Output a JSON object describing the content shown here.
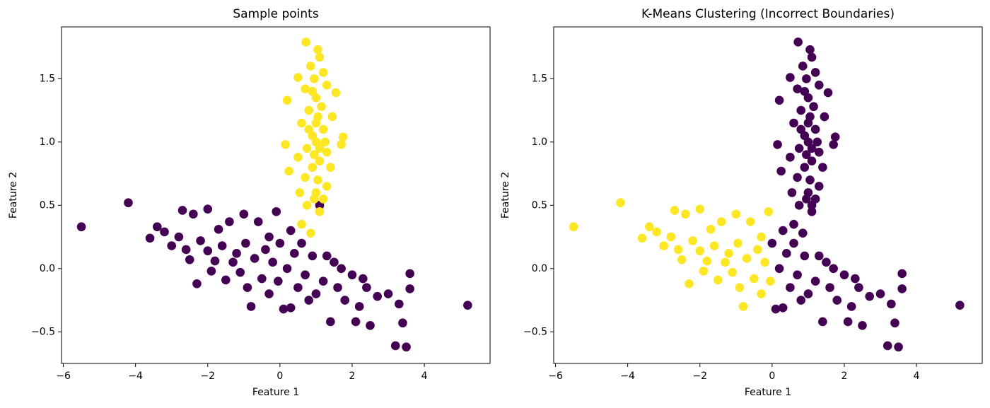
{
  "chart_data": [
    {
      "type": "scatter",
      "title": "Sample points",
      "xlabel": "Feature 1",
      "ylabel": "Feature 2",
      "xlim": [
        -6.05,
        5.82
      ],
      "ylim": [
        -0.75,
        1.91
      ],
      "xticks": [
        {
          "value": -6,
          "label": "−6"
        },
        {
          "value": -4,
          "label": "−4"
        },
        {
          "value": -2,
          "label": "−2"
        },
        0,
        2,
        4
      ],
      "yticks": [
        {
          "value": -0.5,
          "label": "−0.5"
        },
        {
          "value": 0,
          "label": "0.0"
        },
        0.5,
        {
          "value": 1,
          "label": "1.0"
        },
        1.5
      ],
      "series": [
        {
          "color": "#440154",
          "x": [
            -5.5,
            -4.2,
            -3.6,
            -3.4,
            -3.2,
            -3.0,
            -2.8,
            -2.7,
            -2.6,
            -2.5,
            -2.4,
            -2.3,
            -2.2,
            -2.0,
            -2.0,
            -1.9,
            -1.8,
            -1.7,
            -1.6,
            -1.5,
            -1.4,
            -1.3,
            -1.2,
            -1.1,
            -1.0,
            -0.95,
            -0.9,
            -0.8,
            -0.7,
            -0.6,
            -0.5,
            -0.4,
            -0.3,
            -0.2,
            -0.1,
            -0.05,
            -0.3,
            0.0,
            0.1,
            0.2,
            0.3,
            0.4,
            0.5,
            0.6,
            0.7,
            0.8,
            0.9,
            1.0,
            1.1,
            1.2,
            1.4,
            1.5,
            1.6,
            1.8,
            2.0,
            2.1,
            2.2,
            2.4,
            2.5,
            2.7,
            3.0,
            3.2,
            3.3,
            3.4,
            3.5,
            3.6,
            3.6,
            5.2,
            0.3,
            1.3,
            1.7,
            2.3
          ],
          "y": [
            0.33,
            0.52,
            0.24,
            0.33,
            0.29,
            0.18,
            0.25,
            0.46,
            0.15,
            0.07,
            0.43,
            -0.12,
            0.22,
            0.47,
            0.14,
            -0.02,
            0.06,
            0.31,
            0.18,
            -0.09,
            0.37,
            0.05,
            0.12,
            -0.03,
            0.43,
            0.2,
            -0.15,
            -0.3,
            0.08,
            0.37,
            -0.08,
            0.15,
            -0.2,
            0.05,
            0.45,
            -0.1,
            0.25,
            0.2,
            -0.32,
            0.0,
            -0.31,
            0.12,
            -0.15,
            0.2,
            -0.05,
            -0.25,
            0.1,
            -0.2,
            0.5,
            -0.1,
            -0.42,
            0.05,
            -0.15,
            -0.25,
            -0.05,
            -0.42,
            -0.3,
            -0.15,
            -0.45,
            -0.22,
            -0.2,
            -0.61,
            -0.28,
            -0.43,
            -0.62,
            -0.16,
            -0.04,
            -0.29,
            0.3,
            0.1,
            0.0,
            -0.08
          ]
        },
        {
          "color": "#fde725",
          "x": [
            0.72,
            1.05,
            1.1,
            0.85,
            1.2,
            0.5,
            0.95,
            1.3,
            0.7,
            1.55,
            0.2,
            1.0,
            0.8,
            1.15,
            1.45,
            0.6,
            1.0,
            0.9,
            1.2,
            1.75,
            0.15,
            1.0,
            0.75,
            1.3,
            1.7,
            0.5,
            1.1,
            0.9,
            1.4,
            0.25,
            0.7,
            1.05,
            1.3,
            0.55,
            0.95,
            1.2,
            0.75,
            1.1,
            0.6,
            0.85,
            1.0,
            0.9,
            1.1,
            0.95,
            1.25,
            0.8,
            1.05
          ],
          "y": [
            1.79,
            1.73,
            1.67,
            1.6,
            1.55,
            1.51,
            1.5,
            1.45,
            1.42,
            1.39,
            1.33,
            1.35,
            1.25,
            1.28,
            1.2,
            1.15,
            1.15,
            1.05,
            1.1,
            1.04,
            0.98,
            1.0,
            0.95,
            0.92,
            0.98,
            0.88,
            0.85,
            0.8,
            0.8,
            0.77,
            0.72,
            0.7,
            0.65,
            0.6,
            0.55,
            0.55,
            0.5,
            0.45,
            0.35,
            0.28,
            0.6,
            1.4,
            0.95,
            0.9,
            1.0,
            1.1,
            1.2
          ]
        }
      ]
    },
    {
      "type": "scatter",
      "title": "K-Means Clustering (Incorrect Boundaries)",
      "xlabel": "Feature 1",
      "ylabel": "Feature 2",
      "xlim": [
        -6.05,
        5.82
      ],
      "ylim": [
        -0.75,
        1.91
      ],
      "xticks": [
        {
          "value": -6,
          "label": "−6"
        },
        {
          "value": -4,
          "label": "−4"
        },
        {
          "value": -2,
          "label": "−2"
        },
        0,
        2,
        4
      ],
      "yticks": [
        {
          "value": -0.5,
          "label": "−0.5"
        },
        {
          "value": 0,
          "label": "0.0"
        },
        0.5,
        {
          "value": 1,
          "label": "1.0"
        },
        1.5
      ],
      "series": [
        {
          "color": "#440154",
          "x": [
            0.0,
            0.1,
            0.2,
            0.3,
            0.4,
            0.5,
            0.6,
            0.7,
            0.8,
            0.9,
            1.0,
            1.1,
            1.2,
            1.4,
            1.5,
            1.6,
            1.8,
            2.0,
            2.1,
            2.2,
            2.4,
            2.5,
            2.7,
            3.0,
            3.2,
            3.3,
            3.4,
            3.5,
            3.6,
            3.6,
            5.2,
            0.3,
            1.3,
            1.7,
            2.3,
            0.72,
            1.05,
            1.1,
            0.85,
            1.2,
            0.5,
            0.95,
            1.3,
            0.7,
            1.55,
            0.2,
            1.0,
            0.8,
            1.15,
            1.45,
            0.6,
            1.0,
            0.9,
            1.2,
            1.75,
            0.15,
            1.0,
            0.75,
            1.3,
            1.7,
            0.5,
            1.1,
            0.9,
            1.4,
            0.25,
            0.7,
            1.05,
            1.3,
            0.55,
            0.95,
            1.2,
            0.75,
            1.1,
            0.6,
            0.85,
            1.0,
            0.9,
            1.1,
            0.95,
            1.25,
            0.8,
            1.05
          ],
          "y": [
            0.2,
            -0.32,
            0.0,
            -0.31,
            0.12,
            -0.15,
            0.2,
            -0.05,
            -0.25,
            0.1,
            -0.2,
            0.5,
            -0.1,
            -0.42,
            0.05,
            -0.15,
            -0.25,
            -0.05,
            -0.42,
            -0.3,
            -0.15,
            -0.45,
            -0.22,
            -0.2,
            -0.61,
            -0.28,
            -0.43,
            -0.62,
            -0.16,
            -0.04,
            -0.29,
            0.3,
            0.1,
            0.0,
            -0.08,
            1.79,
            1.73,
            1.67,
            1.6,
            1.55,
            1.51,
            1.5,
            1.45,
            1.42,
            1.39,
            1.33,
            1.35,
            1.25,
            1.28,
            1.2,
            1.15,
            1.15,
            1.05,
            1.1,
            1.04,
            0.98,
            1.0,
            0.95,
            0.92,
            0.98,
            0.88,
            0.85,
            0.8,
            0.8,
            0.77,
            0.72,
            0.7,
            0.65,
            0.6,
            0.55,
            0.55,
            0.5,
            0.45,
            0.35,
            0.28,
            0.6,
            1.4,
            0.95,
            0.9,
            1.0,
            1.1,
            1.2
          ]
        },
        {
          "color": "#fde725",
          "x": [
            -5.5,
            -4.2,
            -3.6,
            -3.4,
            -3.2,
            -3.0,
            -2.8,
            -2.7,
            -2.6,
            -2.5,
            -2.4,
            -2.3,
            -2.2,
            -2.0,
            -2.0,
            -1.9,
            -1.8,
            -1.7,
            -1.6,
            -1.5,
            -1.4,
            -1.3,
            -1.2,
            -1.1,
            -1.0,
            -0.95,
            -0.9,
            -0.8,
            -0.7,
            -0.6,
            -0.5,
            -0.4,
            -0.3,
            -0.2,
            -0.1,
            -0.05,
            -0.3
          ],
          "y": [
            0.33,
            0.52,
            0.24,
            0.33,
            0.29,
            0.18,
            0.25,
            0.46,
            0.15,
            0.07,
            0.43,
            -0.12,
            0.22,
            0.47,
            0.14,
            -0.02,
            0.06,
            0.31,
            0.18,
            -0.09,
            0.37,
            0.05,
            0.12,
            -0.03,
            0.43,
            0.2,
            -0.15,
            -0.3,
            0.08,
            0.37,
            -0.08,
            0.15,
            -0.2,
            0.05,
            0.45,
            -0.1,
            0.25
          ]
        }
      ]
    }
  ]
}
